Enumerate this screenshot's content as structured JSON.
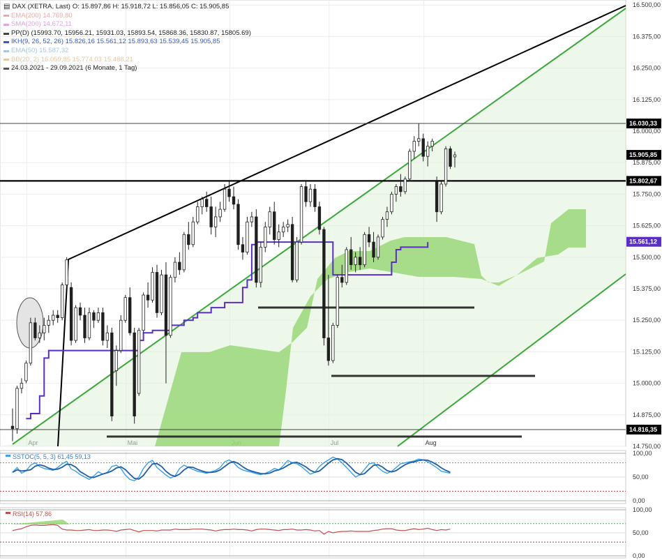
{
  "header": {
    "title": "DAX (XETRA, Last)",
    "ohlc": "O: 15.897,86  H: 15.918,72  L: 15.856,05  C: 15.905,85"
  },
  "legend": [
    {
      "label": "EMA(200) 14.769,80",
      "color": "#f4a6a6"
    },
    {
      "label": "SMA(200) 14.672,11",
      "color": "#e8a0e8"
    },
    {
      "label": "PP(D)  (15993.70, 15956.21, 15931.03, 15893.54, 15868.36, 15830.87, 15805.69)",
      "color": "#444444"
    },
    {
      "label": "IKH(9, 26, 52, 26)  15.826,16  15.561,12  15.893,63  15.539,45  15.905,85",
      "color": "#3b57c4"
    },
    {
      "label": "EMA(50) 15.587,32",
      "color": "#a6c8e8"
    },
    {
      "label": "BB(20, 2) 16.059,85  15.774,03  15.488,21",
      "color": "#e8c8a0"
    },
    {
      "label": "24.03.2021 - 29.09.2021  (6 Monate, 1 Tag)",
      "color": "#555555"
    }
  ],
  "price_axis": {
    "ticks": [
      "16.500,00",
      "16.375,00",
      "16.250,00",
      "16.125,00",
      "16.000,00",
      "15.875,00",
      "15.750,00",
      "15.625,00",
      "15.500,00",
      "15.375,00",
      "15.250,00",
      "15.125,00",
      "15.000,00",
      "14.875,00",
      "14.750,00"
    ],
    "tags": [
      {
        "text": "16.030,33",
        "value": 16030.33,
        "bg": "#000000",
        "fg": "#ffffff"
      },
      {
        "text": "15.905,85",
        "value": 15905.85,
        "bg": "#000000",
        "fg": "#ffffff"
      },
      {
        "text": "15.802,67",
        "value": 15802.67,
        "bg": "#000000",
        "fg": "#ffffff"
      },
      {
        "text": "15.561,12",
        "value": 15561.12,
        "bg": "#5a2ec4",
        "fg": "#ffffff"
      },
      {
        "text": "14.816,35",
        "value": 14816.35,
        "bg": "#000000",
        "fg": "#ffffff"
      }
    ]
  },
  "time_axis": {
    "months": [
      "Apr",
      "Mai",
      "Jun",
      "Jul",
      "Aug"
    ]
  },
  "stoch_panel": {
    "label": "SSTOC(5, 5, 3)  61,45  59,13",
    "ticks": [
      "100,00",
      "50,00",
      "0,00"
    ]
  },
  "rsi_panel": {
    "label": "RSI(14)  57,86",
    "ticks": [
      "100,00",
      "50,00",
      "0,00"
    ]
  },
  "colors": {
    "ikh": "#5a2ec4",
    "cloud": "#8fd46a",
    "channel": "#3aa83a",
    "stoch_k": "#3ba0e8",
    "stoch_d": "#1e5fa8",
    "rsi": "#c0504d"
  },
  "chart_data": {
    "type": "candlestick",
    "title": "DAX (XETRA, Last)",
    "period": "24.03.2021 - 29.09.2021",
    "ylim": [
      14750,
      16520
    ],
    "levels": [
      16030.33,
      15802.67,
      14816.35
    ],
    "candles": [
      {
        "o": 14830,
        "h": 14900,
        "l": 14770,
        "c": 14820
      },
      {
        "o": 14820,
        "h": 14990,
        "l": 14800,
        "c": 14980
      },
      {
        "o": 14980,
        "h": 15020,
        "l": 14960,
        "c": 15000
      },
      {
        "o": 15010,
        "h": 15090,
        "l": 15000,
        "c": 15080
      },
      {
        "o": 15080,
        "h": 15260,
        "l": 15070,
        "c": 15240
      },
      {
        "o": 15240,
        "h": 15260,
        "l": 15170,
        "c": 15180
      },
      {
        "o": 15180,
        "h": 15230,
        "l": 15160,
        "c": 15200
      },
      {
        "o": 15200,
        "h": 15260,
        "l": 15170,
        "c": 15230
      },
      {
        "o": 15230,
        "h": 15270,
        "l": 15200,
        "c": 15250
      },
      {
        "o": 15250,
        "h": 15290,
        "l": 15230,
        "c": 15270
      },
      {
        "o": 15270,
        "h": 15290,
        "l": 15240,
        "c": 15260
      },
      {
        "o": 15260,
        "h": 15400,
        "l": 15250,
        "c": 15390
      },
      {
        "o": 15390,
        "h": 15500,
        "l": 15380,
        "c": 15490
      },
      {
        "o": 15380,
        "h": 15400,
        "l": 15150,
        "c": 15170
      },
      {
        "o": 15170,
        "h": 15310,
        "l": 15160,
        "c": 15300
      },
      {
        "o": 15300,
        "h": 15320,
        "l": 15250,
        "c": 15270
      },
      {
        "o": 15270,
        "h": 15300,
        "l": 15160,
        "c": 15180
      },
      {
        "o": 15180,
        "h": 15300,
        "l": 15170,
        "c": 15280
      },
      {
        "o": 15280,
        "h": 15290,
        "l": 15220,
        "c": 15250
      },
      {
        "o": 15250,
        "h": 15300,
        "l": 15240,
        "c": 15280
      },
      {
        "o": 15280,
        "h": 15300,
        "l": 15150,
        "c": 15170
      },
      {
        "o": 15170,
        "h": 15230,
        "l": 15140,
        "c": 15200
      },
      {
        "o": 15200,
        "h": 15220,
        "l": 14850,
        "c": 14870
      },
      {
        "o": 15050,
        "h": 15150,
        "l": 14990,
        "c": 15130
      },
      {
        "o": 15130,
        "h": 15270,
        "l": 15120,
        "c": 15250
      },
      {
        "o": 15250,
        "h": 15350,
        "l": 15240,
        "c": 15340
      },
      {
        "o": 15340,
        "h": 15380,
        "l": 15190,
        "c": 15200
      },
      {
        "o": 15200,
        "h": 15220,
        "l": 14840,
        "c": 14870
      },
      {
        "o": 14960,
        "h": 15220,
        "l": 14950,
        "c": 15210
      },
      {
        "o": 15210,
        "h": 15360,
        "l": 15200,
        "c": 15350
      },
      {
        "o": 15350,
        "h": 15400,
        "l": 15300,
        "c": 15330
      },
      {
        "o": 15330,
        "h": 15460,
        "l": 15320,
        "c": 15440
      },
      {
        "o": 15440,
        "h": 15470,
        "l": 15260,
        "c": 15280
      },
      {
        "o": 15280,
        "h": 15450,
        "l": 15270,
        "c": 15430
      },
      {
        "o": 15430,
        "h": 15480,
        "l": 15000,
        "c": 15190
      },
      {
        "o": 15190,
        "h": 15430,
        "l": 15180,
        "c": 15420
      },
      {
        "o": 15420,
        "h": 15500,
        "l": 15400,
        "c": 15480
      },
      {
        "o": 15480,
        "h": 15520,
        "l": 15430,
        "c": 15450
      },
      {
        "o": 15450,
        "h": 15600,
        "l": 15440,
        "c": 15590
      },
      {
        "o": 15590,
        "h": 15640,
        "l": 15530,
        "c": 15550
      },
      {
        "o": 15550,
        "h": 15660,
        "l": 15540,
        "c": 15640
      },
      {
        "o": 15640,
        "h": 15720,
        "l": 15630,
        "c": 15700
      },
      {
        "o": 15700,
        "h": 15740,
        "l": 15670,
        "c": 15730
      },
      {
        "o": 15730,
        "h": 15760,
        "l": 15680,
        "c": 15700
      },
      {
        "o": 15700,
        "h": 15740,
        "l": 15590,
        "c": 15620
      },
      {
        "o": 15620,
        "h": 15700,
        "l": 15580,
        "c": 15660
      },
      {
        "o": 15660,
        "h": 15720,
        "l": 15640,
        "c": 15690
      },
      {
        "o": 15690,
        "h": 15790,
        "l": 15680,
        "c": 15770
      },
      {
        "o": 15770,
        "h": 15800,
        "l": 15720,
        "c": 15740
      },
      {
        "o": 15740,
        "h": 15780,
        "l": 15690,
        "c": 15710
      },
      {
        "o": 15710,
        "h": 15730,
        "l": 15530,
        "c": 15550
      },
      {
        "o": 15550,
        "h": 15580,
        "l": 15490,
        "c": 15520
      },
      {
        "o": 15520,
        "h": 15660,
        "l": 15510,
        "c": 15640
      },
      {
        "o": 15640,
        "h": 15680,
        "l": 15620,
        "c": 15660
      },
      {
        "o": 15660,
        "h": 15690,
        "l": 15380,
        "c": 15400
      },
      {
        "o": 15400,
        "h": 15560,
        "l": 15380,
        "c": 15540
      },
      {
        "o": 15540,
        "h": 15640,
        "l": 15520,
        "c": 15620
      },
      {
        "o": 15620,
        "h": 15700,
        "l": 15590,
        "c": 15680
      },
      {
        "o": 15680,
        "h": 15720,
        "l": 15550,
        "c": 15570
      },
      {
        "o": 15570,
        "h": 15630,
        "l": 15540,
        "c": 15600
      },
      {
        "o": 15600,
        "h": 15640,
        "l": 15580,
        "c": 15620
      },
      {
        "o": 15620,
        "h": 15650,
        "l": 15600,
        "c": 15630
      },
      {
        "o": 15630,
        "h": 15660,
        "l": 15400,
        "c": 15410
      },
      {
        "o": 15410,
        "h": 15580,
        "l": 15400,
        "c": 15560
      },
      {
        "o": 15560,
        "h": 15790,
        "l": 15550,
        "c": 15780
      },
      {
        "o": 15780,
        "h": 15800,
        "l": 15700,
        "c": 15720
      },
      {
        "o": 15720,
        "h": 15790,
        "l": 15700,
        "c": 15770
      },
      {
        "o": 15770,
        "h": 15790,
        "l": 15680,
        "c": 15700
      },
      {
        "o": 15700,
        "h": 15720,
        "l": 15590,
        "c": 15610
      },
      {
        "o": 15610,
        "h": 15620,
        "l": 15150,
        "c": 15180
      },
      {
        "o": 15180,
        "h": 15430,
        "l": 15070,
        "c": 15090
      },
      {
        "o": 15090,
        "h": 15240,
        "l": 15080,
        "c": 15230
      },
      {
        "o": 15230,
        "h": 15430,
        "l": 15220,
        "c": 15420
      },
      {
        "o": 15420,
        "h": 15470,
        "l": 15380,
        "c": 15400
      },
      {
        "o": 15400,
        "h": 15540,
        "l": 15390,
        "c": 15530
      },
      {
        "o": 15530,
        "h": 15580,
        "l": 15450,
        "c": 15470
      },
      {
        "o": 15470,
        "h": 15520,
        "l": 15440,
        "c": 15500
      },
      {
        "o": 15500,
        "h": 15540,
        "l": 15450,
        "c": 15470
      },
      {
        "o": 15470,
        "h": 15600,
        "l": 15460,
        "c": 15590
      },
      {
        "o": 15590,
        "h": 15620,
        "l": 15540,
        "c": 15560
      },
      {
        "o": 15560,
        "h": 15600,
        "l": 15480,
        "c": 15500
      },
      {
        "o": 15500,
        "h": 15590,
        "l": 15490,
        "c": 15580
      },
      {
        "o": 15580,
        "h": 15660,
        "l": 15570,
        "c": 15650
      },
      {
        "o": 15650,
        "h": 15700,
        "l": 15620,
        "c": 15680
      },
      {
        "o": 15680,
        "h": 15760,
        "l": 15670,
        "c": 15750
      },
      {
        "o": 15750,
        "h": 15790,
        "l": 15720,
        "c": 15780
      },
      {
        "o": 15780,
        "h": 15830,
        "l": 15740,
        "c": 15760
      },
      {
        "o": 15760,
        "h": 15820,
        "l": 15750,
        "c": 15810
      },
      {
        "o": 15810,
        "h": 15930,
        "l": 15800,
        "c": 15920
      },
      {
        "o": 15920,
        "h": 15980,
        "l": 15890,
        "c": 15960
      },
      {
        "o": 15960,
        "h": 16030,
        "l": 15940,
        "c": 15970
      },
      {
        "o": 15970,
        "h": 15990,
        "l": 15880,
        "c": 15900
      },
      {
        "o": 15900,
        "h": 15960,
        "l": 15860,
        "c": 15940
      },
      {
        "o": 15940,
        "h": 15970,
        "l": 15920,
        "c": 15960
      },
      {
        "o": 15800,
        "h": 15820,
        "l": 15640,
        "c": 15680
      },
      {
        "o": 15680,
        "h": 15800,
        "l": 15670,
        "c": 15790
      },
      {
        "o": 15790,
        "h": 15940,
        "l": 15780,
        "c": 15930
      },
      {
        "o": 15930,
        "h": 15940,
        "l": 15850,
        "c": 15860
      },
      {
        "o": 15897.86,
        "h": 15918.72,
        "l": 15856.05,
        "c": 15905.85
      }
    ],
    "ikh_base": [
      14860,
      14880,
      14880,
      14950,
      15100,
      15130,
      15130,
      15130,
      15130,
      15130,
      15130,
      15130,
      15130,
      15130,
      15130,
      15130,
      15130,
      15130,
      15130,
      15130,
      15130,
      15130,
      15130,
      15130,
      15130,
      15170,
      15200,
      15200,
      15210,
      15210,
      15210,
      15210,
      15230,
      15230,
      15230,
      15250,
      15250,
      15260,
      15280,
      15280,
      15280,
      15300,
      15300,
      15300,
      15320,
      15320,
      15320,
      15320,
      15380,
      15410,
      15550,
      15560,
      15560,
      15560,
      15560,
      15560,
      15560,
      15560,
      15560,
      15560,
      15560,
      15560,
      15560,
      15560,
      15560,
      15560,
      15560,
      15560,
      15430,
      15430,
      15430,
      15430,
      15430,
      15430,
      15430,
      15430,
      15430,
      15430,
      15430,
      15430,
      15430,
      15480,
      15530,
      15540,
      15540,
      15540,
      15540,
      15540,
      15540,
      15560
    ],
    "stoch_k": [
      60,
      70,
      58,
      63,
      75,
      80,
      72,
      68,
      66,
      64,
      70,
      78,
      83,
      67,
      62,
      55,
      50,
      45,
      52,
      61,
      56,
      60,
      72,
      75,
      68,
      54,
      45,
      42,
      50,
      68,
      80,
      85,
      70,
      62,
      54,
      48,
      52,
      68,
      75,
      70,
      66,
      62,
      60,
      58,
      61,
      64,
      70,
      82,
      86,
      80,
      70,
      65,
      62,
      60,
      57,
      55,
      58,
      62,
      68,
      65,
      74,
      85,
      80,
      78,
      72,
      64,
      56,
      60,
      72,
      80,
      86,
      92,
      88,
      80,
      70,
      60,
      50,
      55,
      66,
      78,
      80,
      70,
      62,
      58,
      62,
      70,
      78,
      80,
      82,
      84,
      88,
      86,
      82,
      76,
      70,
      62,
      60,
      58
    ],
    "rsi": [
      55,
      57,
      59,
      63,
      66,
      67,
      66,
      66,
      67,
      68,
      66,
      58,
      56,
      56,
      55,
      55,
      56,
      57,
      55,
      55,
      56,
      56,
      55,
      53,
      56,
      57,
      58,
      55,
      52,
      55,
      55,
      55,
      54,
      56,
      56,
      56,
      58,
      57,
      57,
      57,
      58,
      58,
      58,
      57,
      56,
      54,
      56,
      57,
      57,
      58,
      57,
      57,
      56,
      54,
      57,
      58,
      58,
      57,
      56,
      55,
      57,
      57,
      58,
      56,
      56,
      57,
      56,
      54,
      55,
      47,
      53,
      50,
      52,
      53,
      53,
      54,
      53,
      53,
      53,
      53,
      55,
      56,
      58,
      59,
      59,
      56,
      55,
      55,
      57,
      59,
      57,
      58,
      60,
      57,
      55,
      57,
      56,
      58
    ]
  }
}
